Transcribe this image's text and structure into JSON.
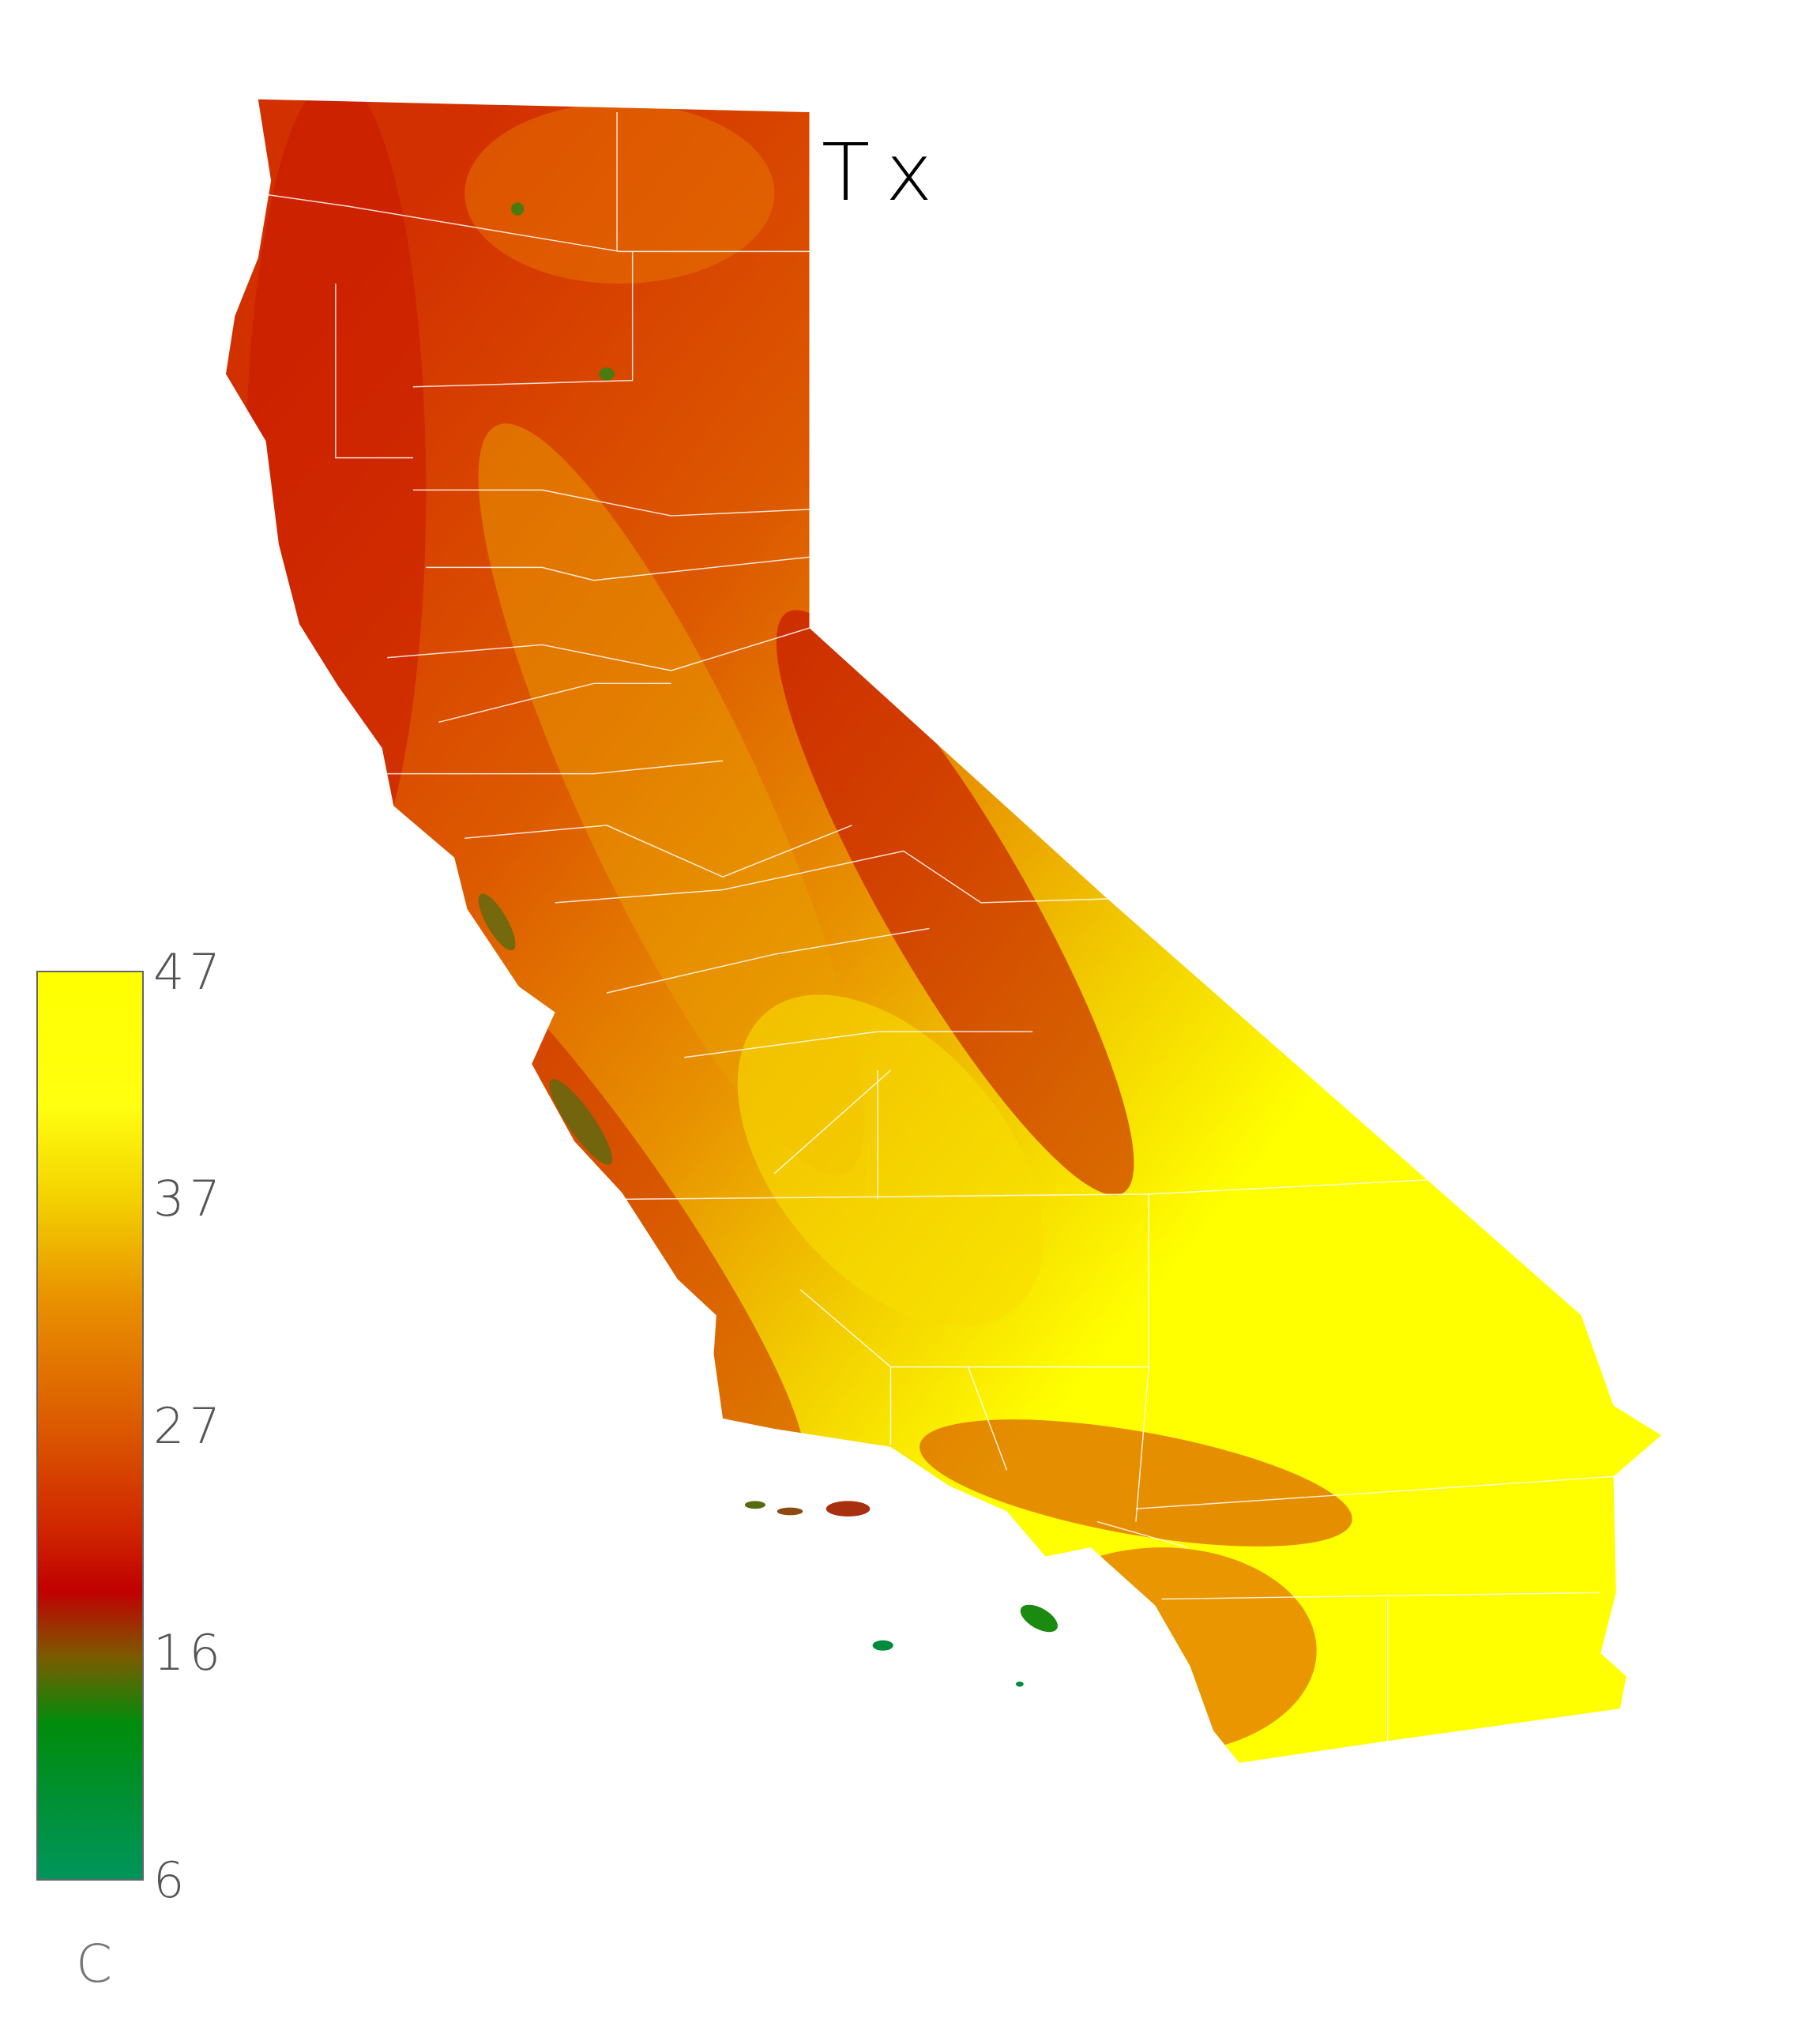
{
  "map": {
    "title": "Tx",
    "region": "California",
    "counties_outlined": true,
    "county_line_color": "#ffffff",
    "background": "#ffffff"
  },
  "colorbar": {
    "ticks": [
      "47",
      "37",
      "27",
      "16",
      "6"
    ],
    "tick_values": [
      47,
      37,
      27,
      16,
      6
    ],
    "range": [
      6,
      47
    ],
    "unit": "C",
    "stops": [
      {
        "value": 47,
        "color": "#ffff00"
      },
      {
        "value": 41,
        "color": "#ffff10"
      },
      {
        "value": 37,
        "color": "#f4d400"
      },
      {
        "value": 32,
        "color": "#e88f00"
      },
      {
        "value": 27,
        "color": "#dd5f00"
      },
      {
        "value": 22,
        "color": "#d02800"
      },
      {
        "value": 19,
        "color": "#c00000"
      },
      {
        "value": 16,
        "color": "#7a5c00"
      },
      {
        "value": 13,
        "color": "#008c0c"
      },
      {
        "value": 6,
        "color": "#00955c"
      }
    ]
  }
}
